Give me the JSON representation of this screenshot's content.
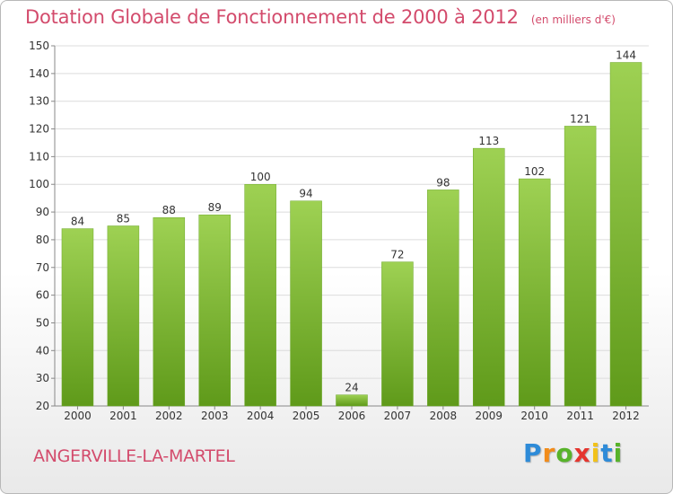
{
  "title": "Dotation Globale de Fonctionnement de 2000 à 2012",
  "unit_label": "(en milliers d'€)",
  "commune": "ANGERVILLE-LA-MARTEL",
  "logo": {
    "text": "Proxiti",
    "letters": [
      {
        "ch": "P",
        "color": "#2e8bd8"
      },
      {
        "ch": "r",
        "color": "#f28c1a"
      },
      {
        "ch": "o",
        "color": "#57b32a"
      },
      {
        "ch": "x",
        "color": "#e5352e"
      },
      {
        "ch": "i",
        "color": "#f2c21a"
      },
      {
        "ch": "t",
        "color": "#2e8bd8"
      },
      {
        "ch": "i",
        "color": "#57b32a"
      }
    ]
  },
  "colors": {
    "accent": "#d34b6c",
    "bar_top": "#9ed153",
    "bar_bottom": "#5f9a1a"
  },
  "chart_data": {
    "type": "bar",
    "title": "Dotation Globale de Fonctionnement de 2000 à 2012",
    "categories": [
      "2000",
      "2001",
      "2002",
      "2003",
      "2004",
      "2005",
      "2006",
      "2007",
      "2008",
      "2009",
      "2010",
      "2011",
      "2012"
    ],
    "values": [
      84,
      85,
      88,
      89,
      100,
      94,
      24,
      72,
      98,
      113,
      102,
      121,
      144
    ],
    "ylim": [
      20,
      150
    ],
    "yticks": [
      20,
      30,
      40,
      50,
      60,
      70,
      80,
      90,
      100,
      110,
      120,
      130,
      140,
      150
    ],
    "grid": true,
    "xlabel": "",
    "ylabel": ""
  }
}
